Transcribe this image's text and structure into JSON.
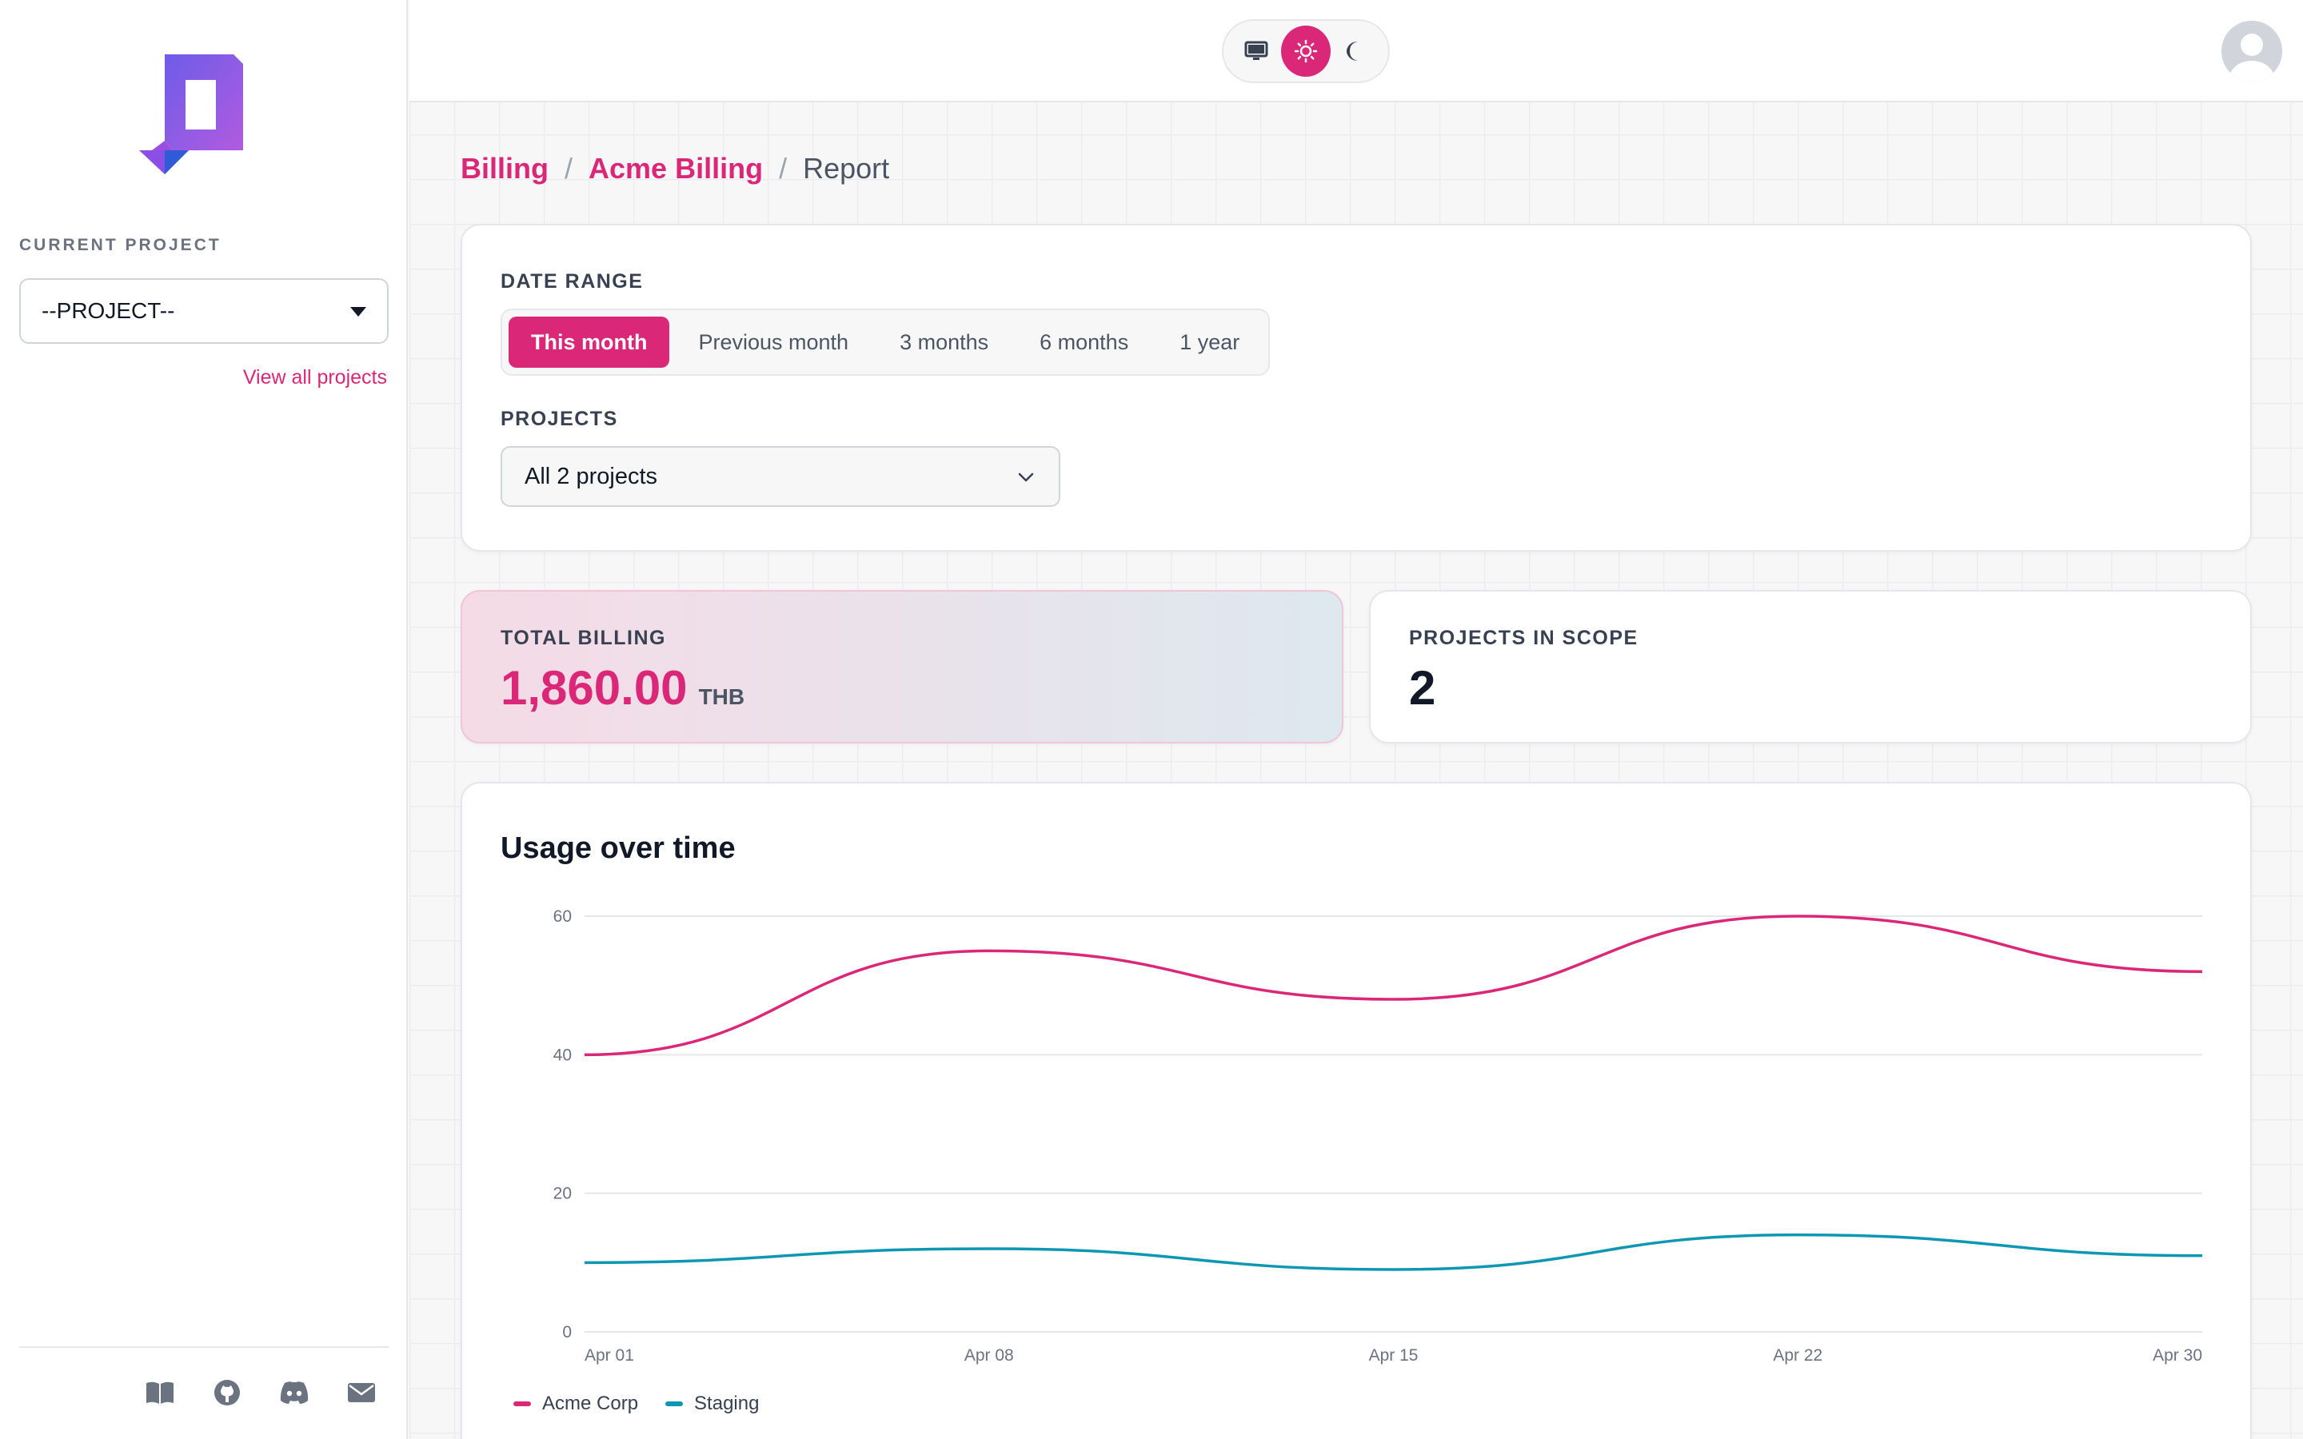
{
  "sidebar": {
    "current_project_label": "CURRENT PROJECT",
    "project_select_value": "--PROJECT--",
    "view_all_link": "View all projects",
    "footer_icons": [
      "book-icon",
      "github-icon",
      "discord-icon",
      "mail-icon"
    ]
  },
  "topbar": {
    "theme_options": [
      "monitor-icon",
      "sun-icon",
      "moon-icon"
    ],
    "active_theme": "sun-icon"
  },
  "breadcrumb": {
    "items": [
      "Billing",
      "Acme Billing"
    ],
    "current": "Report",
    "separator": "/"
  },
  "filters": {
    "date_range_label": "DATE RANGE",
    "ranges": [
      "This month",
      "Previous month",
      "3 months",
      "6 months",
      "1 year"
    ],
    "active_range": "This month",
    "projects_label": "PROJECTS",
    "projects_value": "All 2 projects"
  },
  "stats": {
    "total_billing_label": "TOTAL BILLING",
    "total_billing_value": "1,860.00",
    "total_billing_unit": "THB",
    "projects_in_scope_label": "PROJECTS IN SCOPE",
    "projects_in_scope_value": "2"
  },
  "chart": {
    "title": "Usage over time"
  },
  "colors": {
    "accent": "#db2777",
    "series_acme": "#db2777",
    "series_staging": "#0e97b3"
  },
  "chart_data": {
    "type": "line",
    "x": [
      "Apr 01",
      "Apr 08",
      "Apr 15",
      "Apr 22",
      "Apr 30"
    ],
    "series": [
      {
        "name": "Acme Corp",
        "values": [
          40,
          55,
          48,
          60,
          52
        ]
      },
      {
        "name": "Staging",
        "values": [
          10,
          12,
          9,
          14,
          11
        ]
      }
    ],
    "y_ticks": [
      0,
      20,
      40,
      60
    ],
    "ylim": [
      0,
      60
    ],
    "grid": true,
    "legend_position": "bottom-left"
  }
}
